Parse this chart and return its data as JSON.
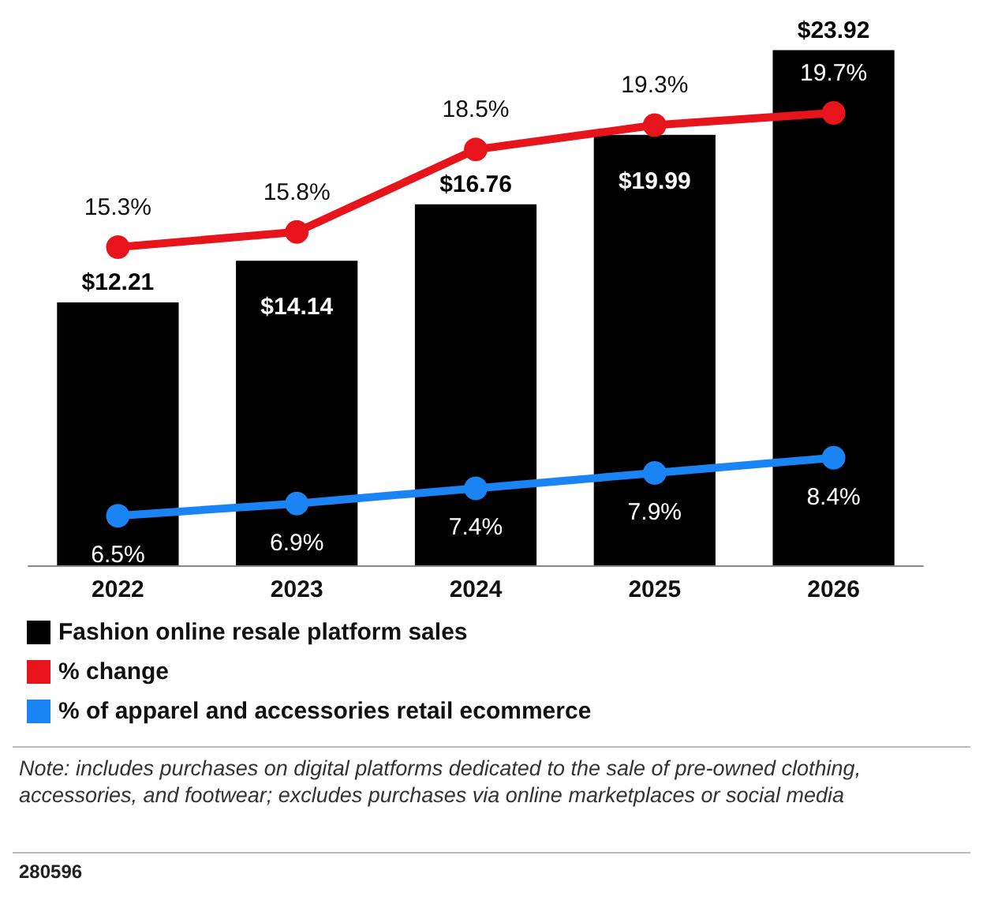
{
  "chart_data": {
    "type": "bar",
    "categories": [
      "2022",
      "2023",
      "2024",
      "2025",
      "2026"
    ],
    "series": [
      {
        "name": "Fashion online resale platform sales",
        "color": "#000000",
        "values": [
          12.21,
          14.14,
          16.76,
          19.99,
          23.92
        ],
        "value_labels": [
          "$12.21",
          "$14.14",
          "$16.76",
          "$19.99",
          "$23.92"
        ]
      },
      {
        "name": "% change",
        "type": "line",
        "axis": "y2",
        "color": "#e8141c",
        "values": [
          15.3,
          15.8,
          18.5,
          19.3,
          19.7
        ],
        "value_labels": [
          "15.3%",
          "15.8%",
          "18.5%",
          "19.3%",
          "19.7%"
        ]
      },
      {
        "name": "% of apparel and accessories retail ecommerce",
        "type": "line",
        "axis": "y2",
        "color": "#1a84f5",
        "values": [
          6.5,
          6.9,
          7.4,
          7.9,
          8.4
        ],
        "value_labels": [
          "6.5%",
          "6.9%",
          "7.4%",
          "7.9%",
          "8.4%"
        ]
      }
    ],
    "tick_labels": "x",
    "legend": "bottom",
    "marker": "circle",
    "line_style": "solid",
    "annotations": [
      "Note: includes purchases on digital platforms dedicated to the sale of pre-owned clothing, accessories, and footwear; excludes purchases via online marketplaces or social media",
      "280596"
    ]
  }
}
